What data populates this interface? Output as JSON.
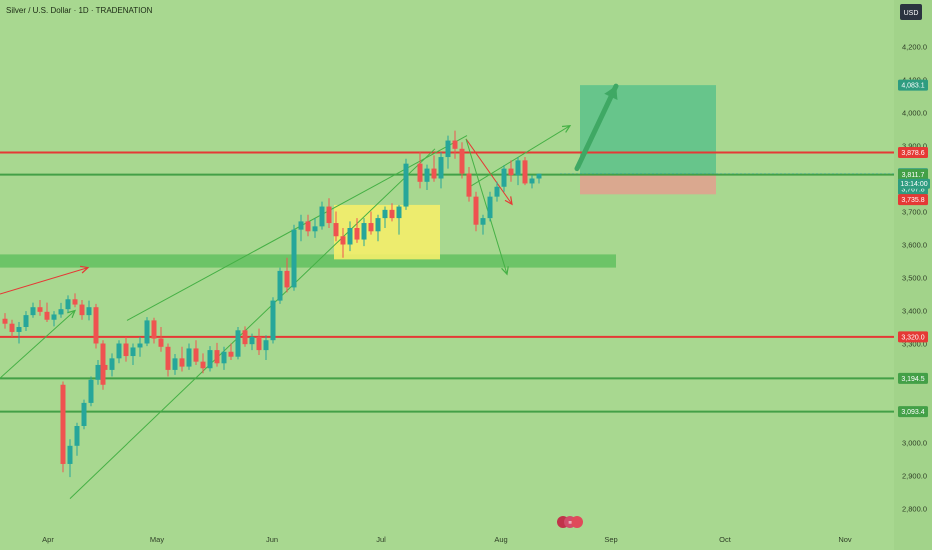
{
  "header": {
    "title": "Silver / U.S. Dollar · 1D · TRADENATION",
    "currency_button": "USD"
  },
  "chart_data": {
    "type": "candlestick",
    "title": "Silver / U.S. Dollar · 1D · TRADENATION",
    "ylim": [
      2750,
      4310
    ],
    "grid": false,
    "y_ticks": [
      "4,200.0",
      "4,100.0",
      "4,000.0",
      "3,900.0",
      "3,800.0",
      "3,700.0",
      "3,600.0",
      "3,500.0",
      "3,400.0",
      "3,300.0",
      "3,200.0",
      "3,100.0",
      "3,000.0",
      "2,900.0",
      "2,800.0"
    ],
    "x_ticks": [
      "Apr",
      "May",
      "Jun",
      "Jul",
      "Aug",
      "Sep",
      "Oct",
      "Nov"
    ],
    "horizontal_levels": [
      {
        "value": 3878.6,
        "label": "3,878.6",
        "color": "#e53935",
        "kind": "resistance"
      },
      {
        "value": 3811.7,
        "label": "3,811.7",
        "color": "#43a047",
        "kind": "support"
      },
      {
        "value": 3320.0,
        "label": "3,320.0",
        "color": "#e53935",
        "kind": "resistance"
      },
      {
        "value": 3194.5,
        "label": "3,194.5",
        "color": "#43a047",
        "kind": "support"
      },
      {
        "value": 3093.4,
        "label": "3,093.4",
        "color": "#43a047",
        "kind": "support"
      }
    ],
    "price_badges": [
      {
        "value": 4083.1,
        "label": "4,083.1",
        "color": "#2e9c80"
      },
      {
        "value": 3878.6,
        "label": "3,878.6",
        "color": "#e53935"
      },
      {
        "value": 3814.4,
        "label": "3,814.4",
        "color": "#2e9c80"
      },
      {
        "value": 3811.7,
        "label": "3,811.7",
        "color": "#43a047"
      },
      {
        "value": 3767.8,
        "label": "3,767.8",
        "color": "#2e9c80"
      },
      {
        "value": 3735.8,
        "label": "3,735.8",
        "color": "#e53935"
      },
      {
        "value": 3320.0,
        "label": "3,320.0",
        "color": "#e53935"
      },
      {
        "value": 3194.5,
        "label": "3,194.5",
        "color": "#43a047"
      },
      {
        "value": 3093.4,
        "label": "3,093.4",
        "color": "#43a047"
      }
    ],
    "countdown": "13:14:00",
    "zones": [
      {
        "name": "support-zone",
        "from": 3530,
        "to": 3570,
        "color": "#5cbf5c"
      },
      {
        "name": "consolidation-box",
        "from": 3555,
        "to": 3720,
        "color": "#f4ee6a"
      },
      {
        "name": "target-zone",
        "from": 3814,
        "to": 4083,
        "color": "#52bf8a"
      },
      {
        "name": "stop-zone",
        "from": 3752,
        "to": 3814,
        "color": "#e3a08f"
      }
    ],
    "colors": {
      "up": "#26a69a",
      "down": "#ef5350",
      "trendline": "#45b045"
    },
    "candles": [
      [
        3375,
        3392,
        3345,
        3360
      ],
      [
        3360,
        3372,
        3320,
        3335
      ],
      [
        3335,
        3365,
        3300,
        3350
      ],
      [
        3350,
        3398,
        3338,
        3386
      ],
      [
        3386,
        3424,
        3378,
        3410
      ],
      [
        3410,
        3432,
        3384,
        3396
      ],
      [
        3396,
        3424,
        3365,
        3372
      ],
      [
        3372,
        3398,
        3352,
        3388
      ],
      [
        3388,
        3423,
        3378,
        3404
      ],
      [
        3404,
        3446,
        3394,
        3434
      ],
      [
        3434,
        3452,
        3410,
        3418
      ],
      [
        3418,
        3432,
        3372,
        3386
      ],
      [
        3386,
        3430,
        3370,
        3410
      ],
      [
        3410,
        3420,
        3285,
        3300
      ],
      [
        3300,
        3310,
        3160,
        3175
      ],
      [
        3175,
        3185,
        2910,
        2935
      ],
      [
        2935,
        3010,
        2895,
        2990
      ],
      [
        2990,
        3060,
        2960,
        3050
      ],
      [
        3050,
        3130,
        3040,
        3120
      ],
      [
        3120,
        3200,
        3110,
        3190
      ],
      [
        3190,
        3250,
        3175,
        3235
      ],
      [
        3235,
        3260,
        3205,
        3220
      ],
      [
        3220,
        3270,
        3200,
        3255
      ],
      [
        3255,
        3310,
        3240,
        3300
      ],
      [
        3300,
        3320,
        3245,
        3262
      ],
      [
        3262,
        3300,
        3235,
        3288
      ],
      [
        3288,
        3320,
        3260,
        3300
      ],
      [
        3300,
        3380,
        3292,
        3370
      ],
      [
        3370,
        3378,
        3300,
        3315
      ],
      [
        3315,
        3350,
        3275,
        3290
      ],
      [
        3290,
        3300,
        3200,
        3220
      ],
      [
        3220,
        3268,
        3205,
        3255
      ],
      [
        3255,
        3290,
        3215,
        3230
      ],
      [
        3230,
        3300,
        3220,
        3285
      ],
      [
        3285,
        3310,
        3235,
        3245
      ],
      [
        3245,
        3270,
        3210,
        3225
      ],
      [
        3225,
        3292,
        3215,
        3280
      ],
      [
        3280,
        3302,
        3230,
        3240
      ],
      [
        3240,
        3290,
        3220,
        3275
      ],
      [
        3275,
        3300,
        3250,
        3260
      ],
      [
        3260,
        3350,
        3252,
        3340
      ],
      [
        3340,
        3352,
        3290,
        3298
      ],
      [
        3298,
        3330,
        3280,
        3320
      ],
      [
        3320,
        3345,
        3265,
        3280
      ],
      [
        3280,
        3325,
        3250,
        3310
      ],
      [
        3310,
        3440,
        3300,
        3430
      ],
      [
        3430,
        3530,
        3420,
        3520
      ],
      [
        3520,
        3560,
        3455,
        3470
      ],
      [
        3470,
        3660,
        3460,
        3645
      ],
      [
        3645,
        3690,
        3610,
        3670
      ],
      [
        3670,
        3690,
        3625,
        3640
      ],
      [
        3640,
        3680,
        3620,
        3655
      ],
      [
        3655,
        3730,
        3645,
        3715
      ],
      [
        3715,
        3740,
        3650,
        3665
      ],
      [
        3665,
        3700,
        3610,
        3625
      ],
      [
        3625,
        3650,
        3560,
        3600
      ],
      [
        3600,
        3670,
        3580,
        3650
      ],
      [
        3650,
        3680,
        3605,
        3615
      ],
      [
        3615,
        3680,
        3595,
        3665
      ],
      [
        3665,
        3700,
        3630,
        3640
      ],
      [
        3640,
        3690,
        3610,
        3680
      ],
      [
        3680,
        3715,
        3650,
        3705
      ],
      [
        3705,
        3725,
        3670,
        3680
      ],
      [
        3680,
        3720,
        3630,
        3715
      ],
      [
        3715,
        3860,
        3705,
        3845
      ],
      [
        3845,
        3880,
        3770,
        3790
      ],
      [
        3790,
        3842,
        3765,
        3830
      ],
      [
        3830,
        3870,
        3790,
        3800
      ],
      [
        3800,
        3880,
        3770,
        3865
      ],
      [
        3865,
        3930,
        3830,
        3915
      ],
      [
        3915,
        3945,
        3860,
        3890
      ],
      [
        3890,
        3910,
        3800,
        3815
      ],
      [
        3815,
        3835,
        3730,
        3745
      ],
      [
        3745,
        3760,
        3640,
        3660
      ],
      [
        3660,
        3690,
        3630,
        3680
      ],
      [
        3680,
        3760,
        3670,
        3745
      ],
      [
        3745,
        3790,
        3730,
        3775
      ],
      [
        3775,
        3840,
        3760,
        3830
      ],
      [
        3830,
        3855,
        3790,
        3810
      ],
      [
        3810,
        3865,
        3780,
        3855
      ],
      [
        3855,
        3865,
        3780,
        3785
      ],
      [
        3785,
        3810,
        3770,
        3800
      ],
      [
        3800,
        3815,
        3785,
        3814.4
      ]
    ],
    "candle_x": [
      5,
      12,
      19,
      26,
      33,
      40,
      47,
      54,
      61,
      68,
      75,
      82,
      89,
      96,
      103,
      63,
      70,
      77,
      84,
      91,
      98,
      105,
      112,
      119,
      126,
      133,
      140,
      147,
      154,
      161,
      168,
      175,
      182,
      189,
      196,
      203,
      210,
      217,
      224,
      231,
      238,
      245,
      252,
      259,
      266,
      273,
      280,
      287,
      294,
      301,
      308,
      315,
      322,
      329,
      336,
      343,
      350,
      357,
      364,
      371,
      378,
      385,
      392,
      399,
      406,
      420,
      427,
      434,
      441,
      448,
      455,
      462,
      469,
      476,
      483,
      490,
      497,
      504,
      511,
      518,
      525,
      532,
      539
    ],
    "trendlines": [
      {
        "from": [
          70,
          2830
        ],
        "to": [
          435,
          3890
        ],
        "color": "#45b045"
      },
      {
        "from": [
          127,
          3370
        ],
        "to": [
          467,
          3930
        ],
        "color": "#45b045"
      },
      {
        "from": [
          0,
          3450
        ],
        "to": [
          88,
          3530
        ],
        "color": "#e53935",
        "arrow": true
      },
      {
        "from": [
          0,
          3195
        ],
        "to": [
          75,
          3400
        ],
        "color": "#45b045",
        "arrow": true
      },
      {
        "from": [
          466,
          3920
        ],
        "to": [
          512,
          3722
        ],
        "color": "#e53935",
        "arrow": true
      },
      {
        "from": [
          466,
          3920
        ],
        "to": [
          507,
          3510
        ],
        "color": "#45b045",
        "arrow": true
      },
      {
        "from": [
          467,
          3770
        ],
        "to": [
          570,
          3960
        ],
        "color": "#45b045",
        "arrow": true
      },
      {
        "from": [
          577,
          3830
        ],
        "to": [
          616,
          4080
        ],
        "color": "#45b045",
        "arrow": true
      }
    ]
  }
}
